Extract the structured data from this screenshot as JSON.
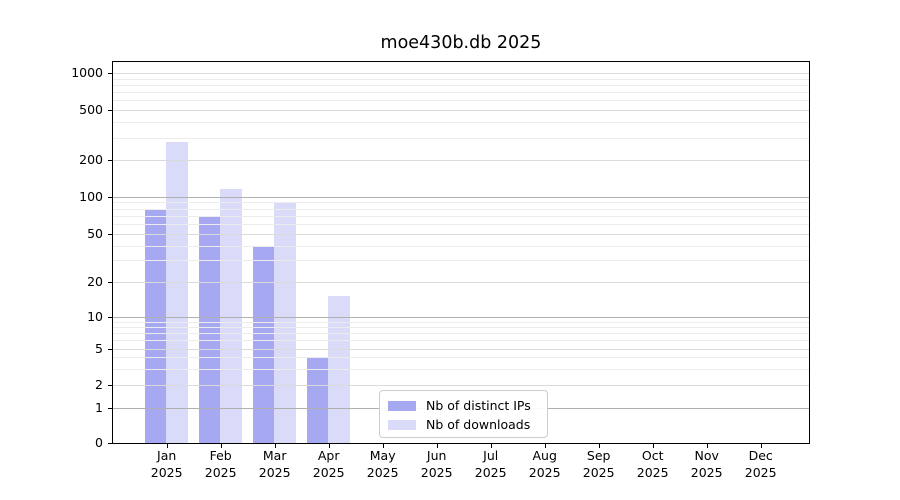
{
  "title": "moe430b.db 2025",
  "colors": {
    "distinct_ips": "#a6a8f2",
    "downloads": "#d9dbf8",
    "grid_major": "#b0b0b0",
    "grid_labeled": "#dadada",
    "grid_minor": "#ececec",
    "axis": "#000000"
  },
  "legend": {
    "items": [
      {
        "label": "Nb of distinct IPs",
        "color": "#a6a8f2"
      },
      {
        "label": "Nb of downloads",
        "color": "#d9dbf8"
      }
    ]
  },
  "chart_data": {
    "type": "bar",
    "title": "moe430b.db 2025",
    "categories": [
      "Jan 2025",
      "Feb 2025",
      "Mar 2025",
      "Apr 2025",
      "May 2025",
      "Jun 2025",
      "Jul 2025",
      "Aug 2025",
      "Sep 2025",
      "Oct 2025",
      "Nov 2025",
      "Dec 2025"
    ],
    "series": [
      {
        "name": "Nb of distinct IPs",
        "color": "#a6a8f2",
        "values": [
          80,
          70,
          40,
          4,
          0,
          0,
          0,
          0,
          0,
          0,
          0,
          0
        ]
      },
      {
        "name": "Nb of downloads",
        "color": "#d9dbf8",
        "values": [
          280,
          115,
          90,
          15,
          0,
          0,
          0,
          0,
          0,
          0,
          0,
          0
        ]
      }
    ],
    "xlabel": "",
    "ylabel": "",
    "yscale": "symlog",
    "yticks": [
      0,
      1,
      2,
      5,
      10,
      20,
      50,
      100,
      200,
      500,
      1000
    ],
    "ylim": [
      0,
      1200
    ],
    "grid": "horizontal",
    "legend_position": "inside lower-center"
  }
}
